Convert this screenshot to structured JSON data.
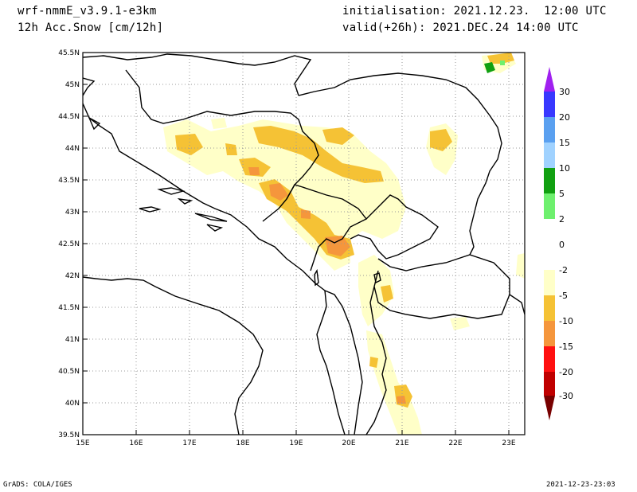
{
  "header": {
    "model": "wrf-nmmE_v3.9.1-e3km",
    "field": "12h Acc.Snow [cm/12h]",
    "init": "initialisation: 2021.12.23.  12:00 UTC",
    "valid": "valid(+26h): 2021.DEC.24 14:00 UTC"
  },
  "map": {
    "lon_labels": [
      "15E",
      "16E",
      "17E",
      "18E",
      "19E",
      "20E",
      "21E",
      "22E",
      "23E"
    ],
    "lat_labels": [
      "45.5N",
      "45N",
      "44.5N",
      "44N",
      "43.5N",
      "43N",
      "42.5N",
      "42N",
      "41.5N",
      "41N",
      "40.5N",
      "40N",
      "39.5N"
    ],
    "lon_range": [
      15,
      23.3
    ],
    "lat_range": [
      39.5,
      45.5
    ],
    "grid": "dotted"
  },
  "legend": {
    "labels": [
      "30",
      "20",
      "15",
      "10",
      "5",
      "2",
      "0",
      "-2",
      "-5",
      "-10",
      "-15",
      "-20",
      "-30"
    ],
    "colors": {
      "top_arrow": "#a020f0",
      "c20_30": "#3838ff",
      "c15_20": "#5aa0f0",
      "c10_15": "#a0d2ff",
      "c5_10": "#11a011",
      "c2_5": "#6ef06e",
      "c0_2": "#ffffff",
      "cm2_0": "#ffffff",
      "cm5_m2": "#ffffc8",
      "cm10_m5": "#f5c235",
      "cm15_m10": "#f5963c",
      "cm20_m15": "#ff1010",
      "cm30_m20": "#c00000",
      "bottom_arrow": "#780000"
    }
  },
  "footer": {
    "left": "GrADS: COLA/IGES",
    "right": "2021-12-23-23:03"
  }
}
